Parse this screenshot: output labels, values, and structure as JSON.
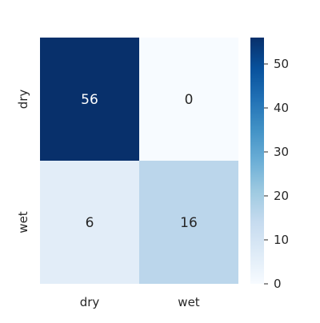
{
  "chart_data": {
    "type": "heatmap",
    "title": "",
    "xlabel": "",
    "ylabel": "",
    "x_categories": [
      "dry",
      "wet"
    ],
    "y_categories": [
      "dry",
      "wet"
    ],
    "values": [
      [
        56,
        0
      ],
      [
        6,
        16
      ]
    ],
    "annotations": [
      [
        "56",
        "0"
      ],
      [
        "6",
        "16"
      ]
    ],
    "colormap": "Blues",
    "value_range": [
      0,
      56
    ],
    "colorbar": {
      "ticks": [
        0,
        10,
        20,
        30,
        40,
        50
      ],
      "tick_labels": [
        "0",
        "10",
        "20",
        "30",
        "40",
        "50"
      ],
      "placement": "right"
    },
    "grid": false
  },
  "colors": {
    "low": "#f7fbff",
    "high": "#08306b",
    "text_dark": "#262626",
    "text_light": "#ffffff"
  }
}
